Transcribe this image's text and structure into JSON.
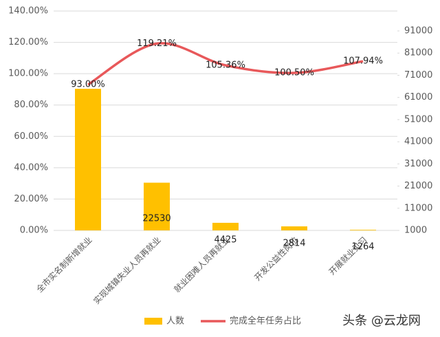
{
  "chart_data": {
    "type": "bar-line",
    "categories": [
      "全市实名制新增就业",
      "实现城镇失业人员再就业",
      "就业困难人员再就业",
      "开发公益性岗位",
      "开展就业见习"
    ],
    "series": [
      {
        "name": "人数",
        "type": "bar",
        "axis": "y2",
        "color": "#ffc000",
        "values": [
          64900,
          22530,
          4425,
          2814,
          1264
        ],
        "value_labels": [
          null,
          "22530",
          "4425",
          "2814",
          "1264"
        ]
      },
      {
        "name": "完成全年任务占比",
        "type": "line",
        "axis": "y",
        "color": "#e8585a",
        "values": [
          93.0,
          119.21,
          105.36,
          100.5,
          107.94
        ],
        "value_labels": [
          "93.00%",
          "119.21%",
          "105.36%",
          "100.50%",
          "107.94%"
        ]
      }
    ],
    "ylim": [
      0,
      140
    ],
    "yticks": [
      {
        "value": 0,
        "label": "0.00%"
      },
      {
        "value": 20,
        "label": "20.00%"
      },
      {
        "value": 40,
        "label": "40.00%"
      },
      {
        "value": 60,
        "label": "60.00%"
      },
      {
        "value": 80,
        "label": "80.00%"
      },
      {
        "value": 100,
        "label": "100.00%"
      },
      {
        "value": 120,
        "label": "120.00%"
      },
      {
        "value": 140,
        "label": "140.00%"
      }
    ],
    "y2lim": [
      1000,
      100000
    ],
    "y2ticks": [
      1000,
      11000,
      21000,
      31000,
      41000,
      51000,
      61000,
      71000,
      81000,
      91000
    ],
    "grid": true,
    "legend": "bottom",
    "watermark": "头条 @云龙网"
  }
}
